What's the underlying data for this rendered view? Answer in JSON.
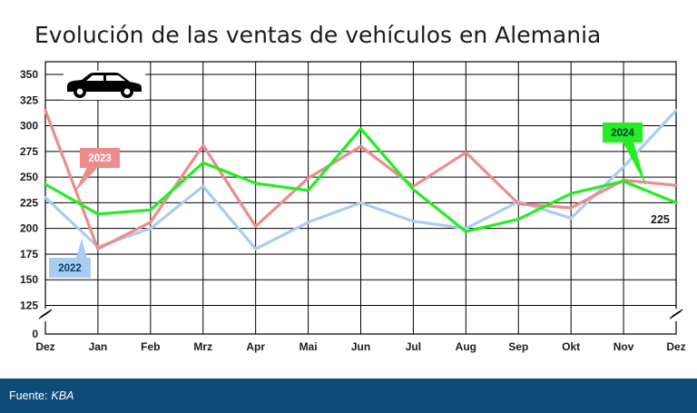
{
  "title": "Evolución de las ventas de vehículos en Alemania",
  "footer": {
    "source_label": "Fuente:",
    "source_name": "KBA"
  },
  "colors": {
    "series_2022": "#a9cdf0",
    "series_2023": "#ee8c8c",
    "series_2024": "#22ee22",
    "label_2022_bg": "#a9cdf0",
    "label_2023_bg": "#ee8c8c",
    "label_2024_bg": "#22ee22",
    "label_2022_text": "#0b3a6a",
    "label_2023_text": "#ffffff",
    "label_2024_text": "#0b2a50",
    "footer_bg": "#0f4c7a",
    "grid": "#000000"
  },
  "icons": [
    "car-icon",
    "axis-break-icon"
  ],
  "chart_data": {
    "type": "line",
    "categories": [
      "Dez",
      "Jan",
      "Feb",
      "Mrz",
      "Apr",
      "Mai",
      "Jun",
      "Jul",
      "Aug",
      "Sep",
      "Okt",
      "Nov",
      "Dez"
    ],
    "series": [
      {
        "name": "2022",
        "color": "#a9cdf0",
        "values": [
          230,
          182,
          200,
          241,
          180,
          206,
          225,
          207,
          200,
          226,
          210,
          260,
          315
        ]
      },
      {
        "name": "2023",
        "color": "#ee8c8c",
        "values": [
          315,
          180,
          206,
          281,
          202,
          249,
          280,
          241,
          274,
          224,
          220,
          247,
          242
        ]
      },
      {
        "name": "2024",
        "color": "#22ee22",
        "values": [
          243,
          214,
          218,
          264,
          244,
          237,
          297,
          238,
          197,
          209,
          234,
          246,
          225
        ]
      }
    ],
    "yticks": [
      0,
      125,
      150,
      175,
      200,
      225,
      250,
      275,
      300,
      325,
      350
    ],
    "ylim": [
      0,
      350
    ],
    "axis_break": true,
    "grid": true,
    "annotations": [
      {
        "series": "2022",
        "text": "2022"
      },
      {
        "series": "2023",
        "text": "2023"
      },
      {
        "series": "2024",
        "text": "2024"
      },
      {
        "series": "2024",
        "text": "225"
      }
    ]
  }
}
